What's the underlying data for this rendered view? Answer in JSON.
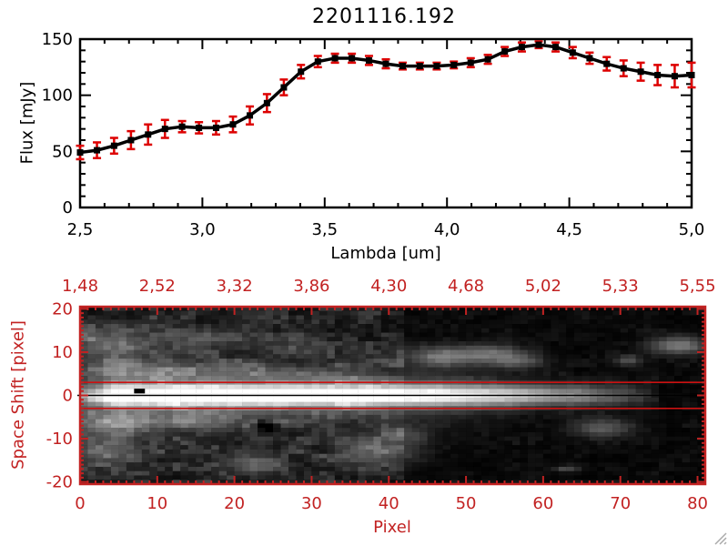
{
  "title": "2201116.192",
  "chart_data": [
    {
      "type": "line",
      "title": "2201116.192",
      "xlabel": "Lambda [um]",
      "ylabel": "Flux [mJy]",
      "xlim": [
        2.5,
        5.0
      ],
      "ylim": [
        0,
        150
      ],
      "x_tick_values": [
        2.5,
        3.0,
        3.5,
        4.0,
        4.5,
        5.0
      ],
      "x_tick_labels": [
        "2,5",
        "3,0",
        "3,5",
        "4,0",
        "4,5",
        "5,0"
      ],
      "y_tick_values": [
        0,
        50,
        100,
        150
      ],
      "y_tick_labels": [
        "0",
        "50",
        "100",
        "150"
      ],
      "x_minor_step": 0.1,
      "y_minor_step": 10,
      "line_color": "#000000",
      "marker": "square",
      "marker_color": "#000000",
      "errorbar_color": "#dd0000",
      "x": [
        2.5,
        2.569,
        2.639,
        2.708,
        2.778,
        2.847,
        2.917,
        2.986,
        3.056,
        3.125,
        3.194,
        3.264,
        3.333,
        3.403,
        3.472,
        3.542,
        3.611,
        3.681,
        3.75,
        3.819,
        3.889,
        3.958,
        4.028,
        4.097,
        4.167,
        4.236,
        4.306,
        4.375,
        4.444,
        4.514,
        4.583,
        4.653,
        4.722,
        4.792,
        4.861,
        4.931,
        5.0
      ],
      "y": [
        49,
        51,
        55,
        60,
        65,
        70,
        72,
        71,
        71,
        74,
        82,
        93,
        107,
        121,
        130,
        133,
        133,
        131,
        128,
        126,
        126,
        126,
        127,
        129,
        132,
        139,
        143,
        145,
        143,
        138,
        133,
        128,
        124,
        121,
        118,
        117,
        118
      ],
      "yerr": [
        6,
        7,
        7,
        8,
        9,
        8,
        5,
        5,
        6,
        7,
        8,
        8,
        7,
        6,
        5,
        4,
        4,
        4,
        4,
        3,
        3,
        3,
        3,
        4,
        4,
        4,
        4,
        3,
        4,
        5,
        5,
        6,
        7,
        8,
        9,
        10,
        11
      ]
    },
    {
      "type": "heatmap",
      "xlabel": "Pixel",
      "ylabel": "Space Shift [pixel]",
      "xlim": [
        0,
        81
      ],
      "ylim": [
        -20.5,
        20.5
      ],
      "x_tick_values": [
        0,
        10,
        20,
        30,
        40,
        50,
        60,
        70,
        80
      ],
      "x_tick_labels": [
        "0",
        "10",
        "20",
        "30",
        "40",
        "50",
        "60",
        "70",
        "80"
      ],
      "top_axis_labels": [
        "1,48",
        "2,52",
        "3,32",
        "3,86",
        "4,30",
        "4,68",
        "5,02",
        "5,33",
        "5,55"
      ],
      "y_tick_values": [
        20,
        10,
        0,
        -10,
        -20
      ],
      "y_tick_labels": [
        "20",
        "10",
        "0",
        "-10",
        "-20"
      ],
      "axis_color": "#c22222",
      "aperture": {
        "upper_y": 3,
        "lower_y": -3,
        "center_y": 0,
        "line_color": "#cc1111",
        "center_line_color": "#000000"
      },
      "trace": {
        "y_center": 0,
        "sigma": 1.7,
        "wing_sigma": 4.6,
        "wing_amp": 0.24,
        "wing_fade_start": 46,
        "wing_fade_len": 14,
        "profile": [
          [
            0,
            0.45
          ],
          [
            2,
            0.62
          ],
          [
            4,
            1.0
          ],
          [
            24,
            1.0
          ],
          [
            32,
            0.93
          ],
          [
            42,
            0.87
          ],
          [
            50,
            0.8
          ],
          [
            56,
            0.72
          ],
          [
            60,
            0.62
          ],
          [
            64,
            0.5
          ],
          [
            68,
            0.35
          ],
          [
            71,
            0.22
          ],
          [
            73,
            0.12
          ],
          [
            74,
            0.06
          ],
          [
            75,
            0
          ],
          [
            81,
            0
          ]
        ]
      },
      "marker": {
        "x": 7.7,
        "y": 1.0,
        "w": 1.4,
        "h": 1.1,
        "color": "#000000"
      },
      "blobs": [
        [
          3,
          12,
          5,
          3.5,
          0.3
        ],
        [
          14,
          13,
          7,
          2.8,
          0.17
        ],
        [
          26,
          11,
          4,
          2,
          0.12
        ],
        [
          5,
          6,
          6,
          2.6,
          0.25
        ],
        [
          17,
          5.5,
          8,
          2.2,
          0.2
        ],
        [
          30,
          4.5,
          6,
          1.8,
          0.14
        ],
        [
          3,
          -7,
          5,
          3,
          0.32
        ],
        [
          13,
          -6,
          9,
          2.4,
          0.2
        ],
        [
          3,
          -13,
          4.5,
          2.8,
          0.3
        ],
        [
          22,
          -16,
          4.5,
          2.2,
          0.24
        ],
        [
          38,
          -13,
          5,
          3.5,
          0.26
        ],
        [
          42,
          -9,
          3,
          1.8,
          0.18
        ],
        [
          47,
          9,
          5,
          2.2,
          0.42
        ],
        [
          53,
          10,
          3.5,
          1.8,
          0.25
        ],
        [
          56,
          8,
          3.5,
          1.8,
          0.32
        ],
        [
          67,
          -7.5,
          4,
          2.2,
          0.3
        ],
        [
          70.5,
          8,
          1.8,
          1.2,
          0.28
        ],
        [
          77,
          11.5,
          3.5,
          2,
          0.45
        ],
        [
          62.5,
          -17,
          1.6,
          0.8,
          0.25
        ],
        [
          23.5,
          -7,
          1.5,
          1.1,
          -0.4
        ]
      ],
      "noise": {
        "left_base": 0.05,
        "left_amp": 0.13,
        "right_base": 0.008,
        "right_amp": 0.05,
        "split_x": 42,
        "seed": 1234
      }
    }
  ]
}
